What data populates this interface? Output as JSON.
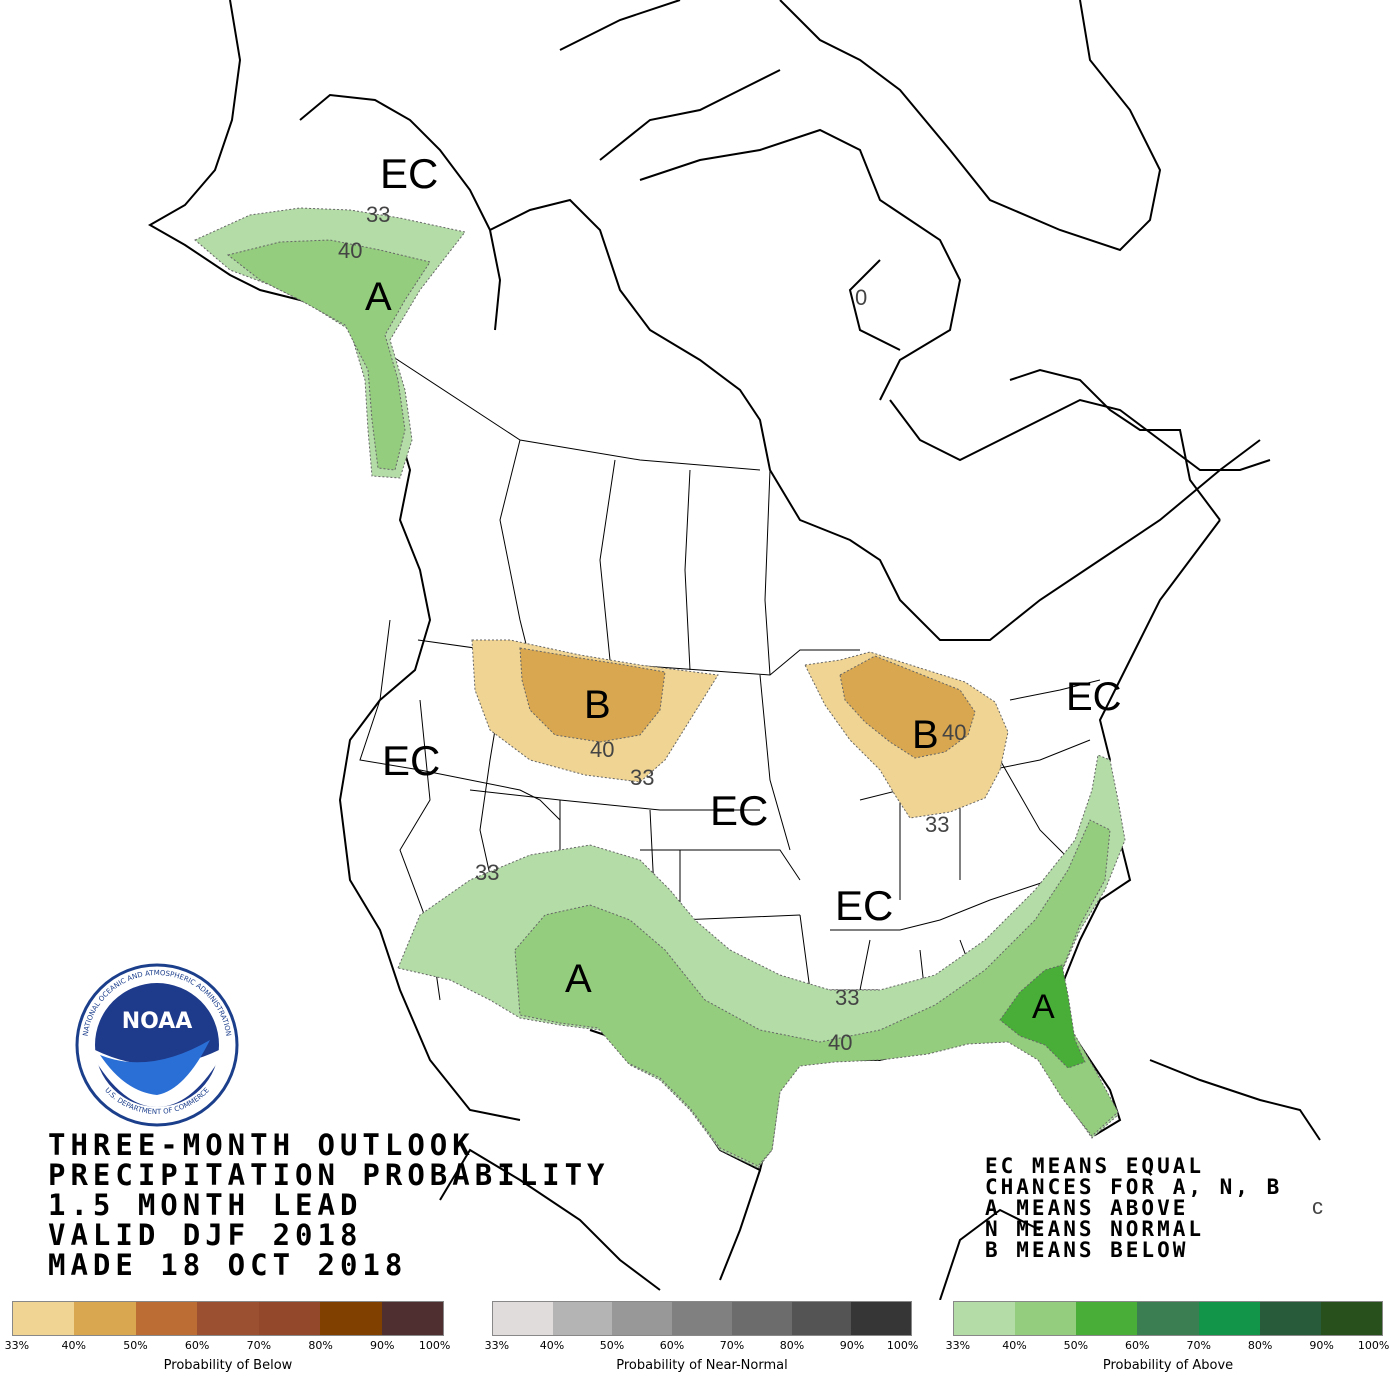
{
  "title": {
    "line1": "THREE-MONTH OUTLOOK",
    "line2": "PRECIPITATION PROBABILITY",
    "line3": "1.5 MONTH LEAD",
    "line4": "VALID DJF 2018",
    "line5": "MADE 18 OCT 2018"
  },
  "legend_note": {
    "line1": "EC MEANS EQUAL",
    "line2": "CHANCES FOR A, N, B",
    "line3": "A MEANS ABOVE",
    "line4": "N MEANS NORMAL",
    "line5": "B MEANS BELOW"
  },
  "logo": {
    "wordmark": "NOAA",
    "ring_text": "NATIONAL OCEANIC AND ATMOSPHERIC ADMINISTRATION",
    "bottom_text": "U.S. DEPARTMENT OF COMMERCE"
  },
  "map_labels": {
    "ec_alaska": "EC",
    "a_alaska": "A",
    "c33_alaska": "33",
    "c40_alaska": "40",
    "b_northwest": "B",
    "c40_northwest": "40",
    "c33_northwest": "33",
    "ec_west": "EC",
    "ec_plains": "EC",
    "ec_midsouth": "EC",
    "ec_northeast": "EC",
    "b_great_lakes": "B",
    "c40_great_lakes": "40",
    "c33_great_lakes": "33",
    "c33_southwest": "33",
    "a_southwest": "A",
    "c33_gulf": "33",
    "c40_gulf": "40",
    "a_southeast": "A",
    "c0_hudson": "0",
    "c_small": "c"
  },
  "scales": [
    {
      "label": "Probability of Below",
      "ticks": [
        "33%",
        "40%",
        "50%",
        "60%",
        "70%",
        "80%",
        "90%",
        "100%"
      ],
      "colors": [
        "#f0d493",
        "#d8a750",
        "#bb6d33",
        "#9b5031",
        "#93472b",
        "#804000",
        "#4f2f2f"
      ]
    },
    {
      "label": "Probability of Near-Normal",
      "ticks": [
        "33%",
        "40%",
        "50%",
        "60%",
        "70%",
        "80%",
        "90%",
        "100%"
      ],
      "colors": [
        "#e0dcdc",
        "#b4b4b4",
        "#989898",
        "#808080",
        "#6c6c6c",
        "#545454",
        "#363636"
      ]
    },
    {
      "label": "Probability of Above",
      "ticks": [
        "33%",
        "40%",
        "50%",
        "60%",
        "70%",
        "80%",
        "90%",
        "100%"
      ],
      "colors": [
        "#b3dca7",
        "#94cd7e",
        "#48ae38",
        "#3a7e52",
        "#139549",
        "#275b3a",
        "#28501c"
      ]
    }
  ]
}
